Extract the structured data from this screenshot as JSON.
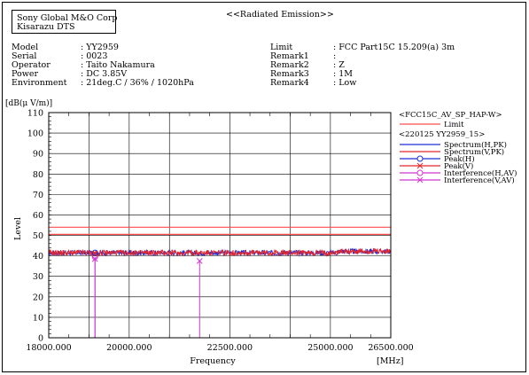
{
  "header": {
    "company_line1": "Sony Global M&O Corp",
    "company_line2": "Kisarazu DTS",
    "report_title": "<<Radiated Emission>>"
  },
  "info_left": [
    {
      "label": "Model",
      "value": ": YY2959"
    },
    {
      "label": "Serial",
      "value": ": 0023"
    },
    {
      "label": "Operator",
      "value": ": Taito Nakamura"
    },
    {
      "label": "Power",
      "value": ": DC 3.85V"
    },
    {
      "label": "Environment",
      "value": ": 21deg.C / 36% / 1020hPa"
    }
  ],
  "info_right": [
    {
      "label": "Limit",
      "value": ": FCC Part15C 15.209(a) 3m"
    },
    {
      "label": "Remark1",
      "value": ":"
    },
    {
      "label": "Remark2",
      "value": ": Z"
    },
    {
      "label": "Remark3",
      "value": ": 1M"
    },
    {
      "label": "Remark4",
      "value": ": Low"
    }
  ],
  "legend": {
    "title1": "<FCC15C_AV_SP_HAP-W>",
    "title2": "<220125 YY2959_15>",
    "entries": [
      {
        "label": "Limit",
        "color": "#ff4d4d",
        "style": "line"
      },
      {
        "label": "Spectrum(H,PK)",
        "color": "#1f2fd6",
        "style": "line"
      },
      {
        "label": "Spectrum(V,PK)",
        "color": "#e3262b",
        "style": "line"
      },
      {
        "label": "Peak(H)",
        "color": "#1f2fd6",
        "style": "circle"
      },
      {
        "label": "Peak(V)",
        "color": "#e3262b",
        "style": "cross"
      },
      {
        "label": "Interference(H,AV)",
        "color": "#d236d2",
        "style": "circle"
      },
      {
        "label": "Interference(V,AV)",
        "color": "#d236d2",
        "style": "cross"
      }
    ]
  },
  "chart_data": {
    "type": "line",
    "ylabel_units": "[dB(μ V/m)]",
    "ylabel": "Level",
    "xlabel": "Frequency",
    "xunit": "[MHz]",
    "xlim": [
      18000,
      26500
    ],
    "ylim": [
      0,
      110
    ],
    "yticks": [
      0,
      10,
      20,
      30,
      40,
      50,
      60,
      70,
      80,
      90,
      100,
      110
    ],
    "xtick_labels": [
      {
        "value": 18000,
        "label": "18000.000"
      },
      {
        "value": 20000,
        "label": "20000.000"
      },
      {
        "value": 22500,
        "label": "22500.000"
      },
      {
        "value": 25000,
        "label": "25000.000"
      },
      {
        "value": 26500,
        "label": "26500.000"
      }
    ],
    "x_minor_grid_step": 500,
    "x_major_grid": [
      20000,
      22500,
      25000
    ],
    "grid": true,
    "limit_lines": [
      {
        "name": "Limit",
        "value": 54,
        "color": "#ff4d4d"
      },
      {
        "name": "Limit",
        "value": 50.5,
        "color": "#ff4d4d"
      }
    ],
    "series": [
      {
        "name": "Spectrum(H,PK)",
        "color": "#1f2fd6",
        "base": 41.5,
        "noise": 1.3
      },
      {
        "name": "Spectrum(V,PK)",
        "color": "#e3262b",
        "base": 41.5,
        "noise": 1.4
      }
    ],
    "interference": [
      {
        "name": "Interference(H,AV)",
        "x": 19150,
        "y": 39.5,
        "marker": "circle",
        "color": "#d236d2"
      },
      {
        "name": "Interference(V,AV)",
        "x": 19150,
        "y": 38.5,
        "marker": "cross",
        "color": "#d236d2"
      },
      {
        "name": "Interference(V,AV)",
        "x": 21750,
        "y": 37.5,
        "marker": "cross",
        "color": "#d236d2"
      }
    ],
    "peaks": [
      {
        "name": "Peak(H)",
        "x": 19150,
        "y": 41.5,
        "marker": "circle",
        "color": "#1f2fd6"
      },
      {
        "name": "Peak(V)",
        "x": 19150,
        "y": 41.0,
        "marker": "cross",
        "color": "#e3262b"
      }
    ]
  }
}
